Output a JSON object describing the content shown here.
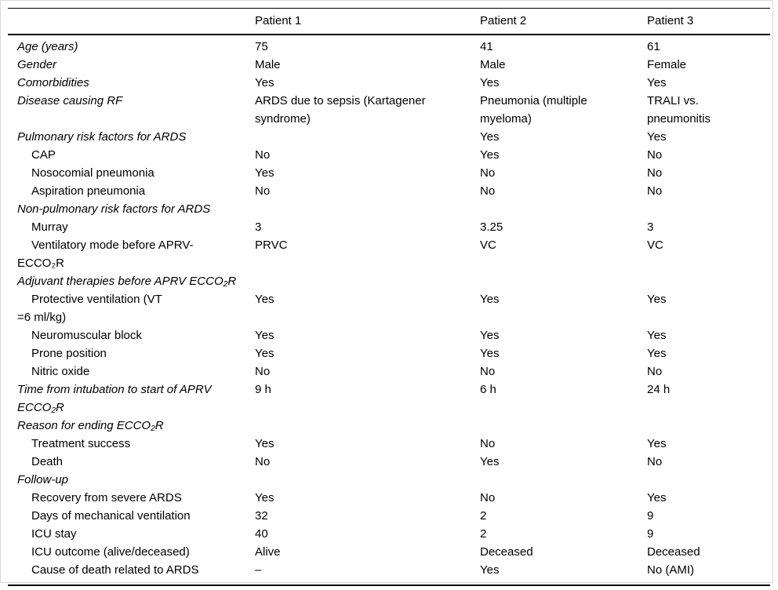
{
  "table": {
    "columns": [
      "",
      "Patient 1",
      "Patient 2",
      "Patient 3"
    ],
    "rows": [
      {
        "label": "Age (years)",
        "style": "section",
        "values": [
          "75",
          "41",
          "61"
        ]
      },
      {
        "label": "Gender",
        "style": "section",
        "values": [
          "Male",
          "Male",
          "Female"
        ]
      },
      {
        "label": "Comorbidities",
        "style": "section",
        "values": [
          "Yes",
          "Yes",
          "Yes"
        ]
      },
      {
        "label": "Disease causing RF",
        "style": "section",
        "values": [
          "ARDS due to sepsis (Kartagener\nsyndrome)",
          "Pneumonia (multiple\nmyeloma)",
          "TRALI vs.\npneumonitis"
        ]
      },
      {
        "label": "Pulmonary risk factors for ARDS",
        "style": "section",
        "values": [
          "",
          "Yes",
          "Yes"
        ]
      },
      {
        "label": "CAP",
        "style": "sub",
        "values": [
          "No",
          "Yes",
          "No"
        ]
      },
      {
        "label": "Nosocomial pneumonia",
        "style": "sub",
        "values": [
          "Yes",
          "No",
          "No"
        ]
      },
      {
        "label": "Aspiration pneumonia",
        "style": "sub",
        "values": [
          "No",
          "No",
          "No"
        ]
      },
      {
        "label": "Non-pulmonary risk factors for ARDS",
        "style": "section",
        "values": [
          "",
          "",
          ""
        ]
      },
      {
        "label": "Murray",
        "style": "sub",
        "values": [
          "3",
          "3.25",
          "3"
        ]
      },
      {
        "label": "Ventilatory mode before APRV-\nECCO₂R",
        "style": "sub",
        "values": [
          "PRVC",
          "VC",
          "VC"
        ]
      },
      {
        "label": "Adjuvant therapies before APRV ECCO₂R",
        "style": "section",
        "values": [
          "",
          "",
          ""
        ]
      },
      {
        "label": "Protective ventilation (VT\n=6 ml/kg)",
        "style": "sub",
        "values": [
          "Yes",
          "Yes",
          "Yes"
        ]
      },
      {
        "label": "Neuromuscular block",
        "style": "sub",
        "values": [
          "Yes",
          "Yes",
          "Yes"
        ]
      },
      {
        "label": "Prone position",
        "style": "sub",
        "values": [
          "Yes",
          "Yes",
          "Yes"
        ]
      },
      {
        "label": "Nitric oxide",
        "style": "sub",
        "values": [
          "No",
          "No",
          "No"
        ]
      },
      {
        "label": "Time from intubation to start of APRV\nECCO₂R",
        "style": "section",
        "values": [
          "9 h",
          "6 h",
          "24 h"
        ]
      },
      {
        "label": "Reason for ending ECCO₂R",
        "style": "section",
        "values": [
          "",
          "",
          ""
        ]
      },
      {
        "label": "Treatment success",
        "style": "sub",
        "values": [
          "Yes",
          "No",
          "Yes"
        ]
      },
      {
        "label": "Death",
        "style": "sub",
        "values": [
          "No",
          "Yes",
          "No"
        ]
      },
      {
        "label": "Follow-up",
        "style": "section",
        "values": [
          "",
          "",
          ""
        ]
      },
      {
        "label": "Recovery from severe ARDS",
        "style": "sub",
        "values": [
          "Yes",
          "No",
          "Yes"
        ]
      },
      {
        "label": "Days of mechanical ventilation",
        "style": "sub",
        "values": [
          "32",
          "2",
          "9"
        ]
      },
      {
        "label": "ICU stay",
        "style": "sub",
        "values": [
          "40",
          "2",
          "9"
        ]
      },
      {
        "label": "ICU outcome (alive/deceased)",
        "style": "sub",
        "values": [
          "Alive",
          "Deceased",
          "Deceased"
        ]
      },
      {
        "label": "Cause of death related to ARDS",
        "style": "sub",
        "values": [
          "–",
          "Yes",
          "No (AMI)"
        ]
      }
    ]
  }
}
